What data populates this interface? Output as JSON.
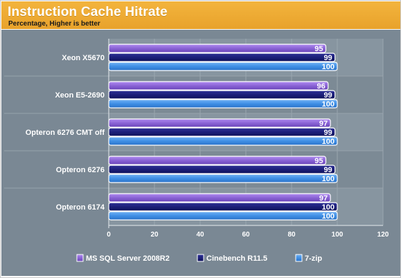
{
  "header": {
    "title": "Instruction Cache Hitrate",
    "subtitle": "Percentage, Higher is better"
  },
  "chart_data": {
    "type": "bar",
    "orientation": "horizontal",
    "title": "Instruction Cache Hitrate",
    "subtitle": "Percentage, Higher is better",
    "categories": [
      "Xeon X5670",
      "Xeon E5-2690",
      "Opteron 6276 CMT off",
      "Opteron 6276",
      "Opteron 6174"
    ],
    "series": [
      {
        "name": "MS SQL Server 2008R2",
        "color": "#8a63d6",
        "values": [
          95,
          96,
          97,
          95,
          97
        ]
      },
      {
        "name": "Cinebench R11.5",
        "color": "#1c1f7a",
        "values": [
          99,
          99,
          99,
          99,
          100
        ]
      },
      {
        "name": "7-zip",
        "color": "#3f8fe6",
        "values": [
          100,
          100,
          100,
          100,
          100
        ]
      }
    ],
    "xlim": [
      0,
      120
    ],
    "xticks": [
      "0",
      "20",
      "40",
      "60",
      "80",
      "100",
      "120"
    ],
    "grid": true,
    "legend": "bottom"
  }
}
